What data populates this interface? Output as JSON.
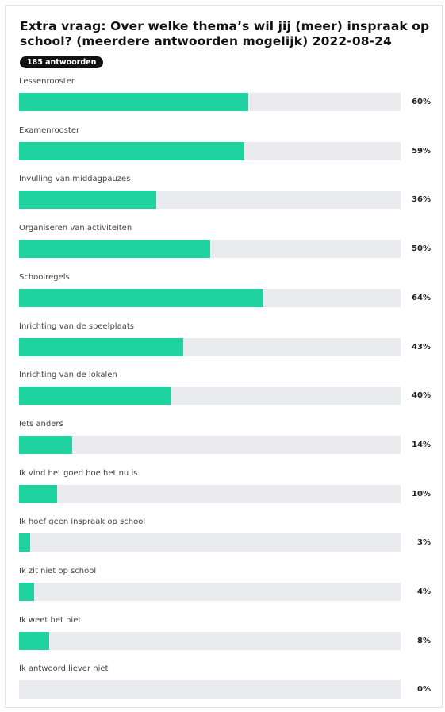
{
  "poll": {
    "title": "Extra vraag: Over welke thema’s wil jij (meer) inspraak op school? (meerdere antwoorden mogelijk) 2022-08-24",
    "responses_badge": "185 antwoorden",
    "bar_color": "#1ed3a0",
    "track_color": "#e9ebee"
  },
  "chart_data": {
    "type": "bar",
    "orientation": "horizontal",
    "title": "Extra vraag: Over welke thema’s wil jij (meer) inspraak op school? (meerdere antwoorden mogelijk) 2022-08-24",
    "categories": [
      "Lessenrooster",
      "Examenrooster",
      "Invulling van middagpauzes",
      "Organiseren van activiteiten",
      "Schoolregels",
      "Inrichting van de speelplaats",
      "Inrichting van de lokalen",
      "Iets anders",
      "Ik vind het goed hoe het nu is",
      "Ik hoef geen inspraak op school",
      "Ik zit niet op school",
      "Ik weet het niet",
      "Ik antwoord liever niet"
    ],
    "values": [
      60,
      59,
      36,
      50,
      64,
      43,
      40,
      14,
      10,
      3,
      4,
      8,
      0
    ],
    "value_labels": [
      "60%",
      "59%",
      "36%",
      "50%",
      "64%",
      "43%",
      "40%",
      "14%",
      "10%",
      "3%",
      "4%",
      "8%",
      "0%"
    ],
    "xlim": [
      0,
      100
    ],
    "unit": "%",
    "grid": false,
    "legend": "none"
  }
}
